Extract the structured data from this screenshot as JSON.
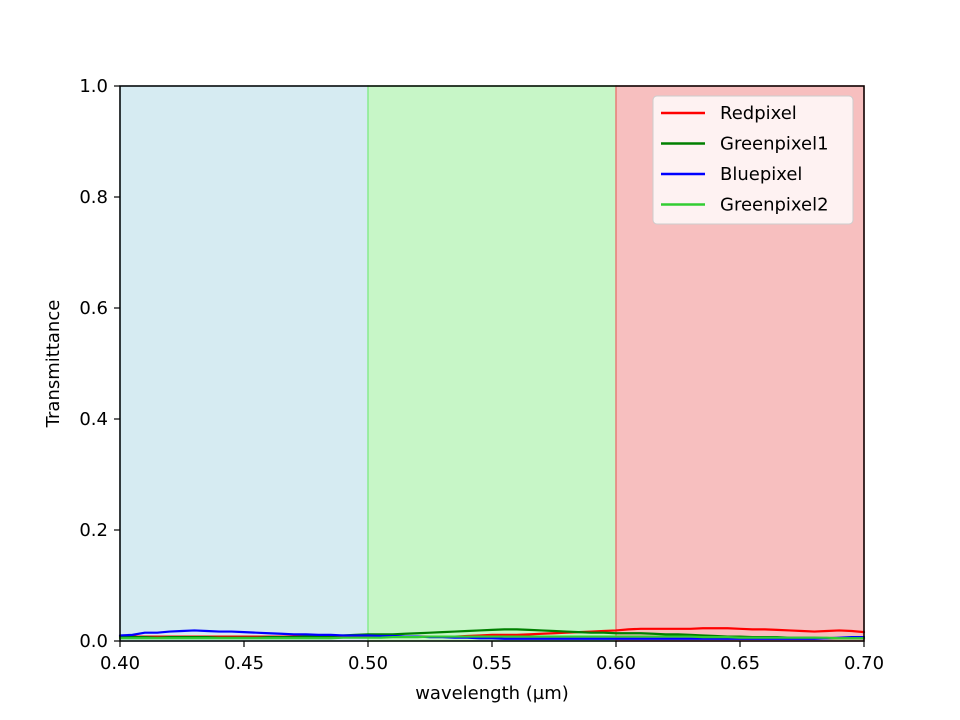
{
  "chart_data": {
    "type": "line",
    "title": "",
    "xlabel": "wavelength (µm)",
    "ylabel": "Transmittance",
    "xlim": [
      0.4,
      0.7
    ],
    "ylim": [
      0.0,
      1.0
    ],
    "xticks": [
      "0.40",
      "0.45",
      "0.50",
      "0.55",
      "0.60",
      "0.65",
      "0.70"
    ],
    "yticks": [
      "0.0",
      "0.2",
      "0.4",
      "0.6",
      "0.8",
      "1.0"
    ],
    "grid": false,
    "legend_position": "top-right",
    "bands": [
      {
        "x0": 0.4,
        "x1": 0.5,
        "color": "#add8e6"
      },
      {
        "x0": 0.5,
        "x1": 0.6,
        "color": "#90ee90"
      },
      {
        "x0": 0.6,
        "x1": 0.7,
        "color": "#f08080"
      }
    ],
    "x": [
      0.4,
      0.405,
      0.41,
      0.415,
      0.42,
      0.425,
      0.43,
      0.435,
      0.44,
      0.445,
      0.45,
      0.455,
      0.46,
      0.465,
      0.47,
      0.475,
      0.48,
      0.485,
      0.49,
      0.495,
      0.5,
      0.505,
      0.51,
      0.515,
      0.52,
      0.525,
      0.53,
      0.535,
      0.54,
      0.545,
      0.55,
      0.555,
      0.56,
      0.565,
      0.57,
      0.575,
      0.58,
      0.585,
      0.59,
      0.595,
      0.6,
      0.605,
      0.61,
      0.615,
      0.62,
      0.625,
      0.63,
      0.635,
      0.64,
      0.645,
      0.65,
      0.655,
      0.66,
      0.665,
      0.67,
      0.675,
      0.68,
      0.685,
      0.69,
      0.695,
      0.7
    ],
    "series": [
      {
        "name": "Redpixel",
        "color": "#ff0000",
        "values": [
          0.008,
          0.008,
          0.008,
          0.008,
          0.008,
          0.008,
          0.008,
          0.008,
          0.008,
          0.008,
          0.008,
          0.008,
          0.008,
          0.008,
          0.008,
          0.008,
          0.008,
          0.008,
          0.008,
          0.008,
          0.008,
          0.008,
          0.008,
          0.008,
          0.008,
          0.008,
          0.008,
          0.008,
          0.009,
          0.01,
          0.011,
          0.011,
          0.011,
          0.012,
          0.013,
          0.014,
          0.015,
          0.016,
          0.017,
          0.018,
          0.019,
          0.021,
          0.022,
          0.022,
          0.022,
          0.022,
          0.022,
          0.023,
          0.023,
          0.023,
          0.022,
          0.021,
          0.021,
          0.02,
          0.019,
          0.018,
          0.017,
          0.018,
          0.019,
          0.018,
          0.016
        ]
      },
      {
        "name": "Greenpixel1",
        "color": "#008000",
        "values": [
          0.007,
          0.007,
          0.007,
          0.006,
          0.007,
          0.007,
          0.007,
          0.007,
          0.006,
          0.006,
          0.006,
          0.006,
          0.007,
          0.007,
          0.007,
          0.008,
          0.008,
          0.009,
          0.01,
          0.011,
          0.012,
          0.012,
          0.012,
          0.013,
          0.014,
          0.015,
          0.016,
          0.017,
          0.018,
          0.019,
          0.02,
          0.021,
          0.021,
          0.02,
          0.019,
          0.018,
          0.017,
          0.016,
          0.015,
          0.015,
          0.014,
          0.014,
          0.014,
          0.013,
          0.012,
          0.012,
          0.011,
          0.01,
          0.009,
          0.008,
          0.008,
          0.007,
          0.007,
          0.007,
          0.006,
          0.006,
          0.006,
          0.005,
          0.005,
          0.005,
          0.005
        ]
      },
      {
        "name": "Bluepixel",
        "color": "#0000ff",
        "values": [
          0.01,
          0.011,
          0.015,
          0.015,
          0.017,
          0.018,
          0.019,
          0.018,
          0.017,
          0.017,
          0.016,
          0.015,
          0.014,
          0.013,
          0.012,
          0.012,
          0.011,
          0.011,
          0.01,
          0.01,
          0.01,
          0.009,
          0.009,
          0.008,
          0.008,
          0.007,
          0.007,
          0.006,
          0.006,
          0.005,
          0.005,
          0.004,
          0.004,
          0.004,
          0.004,
          0.004,
          0.004,
          0.004,
          0.004,
          0.004,
          0.004,
          0.004,
          0.004,
          0.004,
          0.004,
          0.004,
          0.004,
          0.004,
          0.004,
          0.004,
          0.004,
          0.004,
          0.004,
          0.004,
          0.004,
          0.004,
          0.004,
          0.005,
          0.006,
          0.007,
          0.007
        ]
      },
      {
        "name": "Greenpixel2",
        "color": "#32cd32",
        "values": [
          0.005,
          0.005,
          0.005,
          0.005,
          0.005,
          0.005,
          0.005,
          0.005,
          0.005,
          0.005,
          0.005,
          0.005,
          0.005,
          0.005,
          0.005,
          0.005,
          0.005,
          0.005,
          0.006,
          0.006,
          0.006,
          0.006,
          0.007,
          0.007,
          0.007,
          0.008,
          0.008,
          0.008,
          0.008,
          0.008,
          0.008,
          0.008,
          0.008,
          0.008,
          0.008,
          0.008,
          0.008,
          0.008,
          0.008,
          0.008,
          0.008,
          0.008,
          0.008,
          0.008,
          0.008,
          0.008,
          0.008,
          0.007,
          0.007,
          0.007,
          0.006,
          0.006,
          0.006,
          0.006,
          0.006,
          0.006,
          0.006,
          0.006,
          0.005,
          0.005,
          0.005
        ]
      }
    ]
  }
}
